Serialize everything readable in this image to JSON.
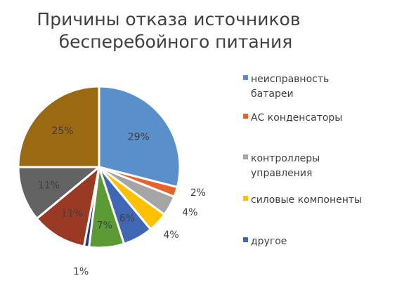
{
  "chart_data": {
    "type": "pie",
    "title": [
      "Причины отказа источников",
      "бесперебойного питания"
    ],
    "slices": [
      {
        "label": "неисправность батареи",
        "value": 29,
        "display": "29%",
        "color": "#5B8FC9",
        "legend": true
      },
      {
        "label": "АС конденсаторы",
        "value": 2,
        "display": "2%",
        "color": "#E8632B",
        "legend": true
      },
      {
        "label": "контроллеры управления",
        "value": 4,
        "display": "4%",
        "color": "#A5A5A5",
        "legend": true
      },
      {
        "label": "силовые компоненты",
        "value": 4,
        "display": "4%",
        "color": "#FFC000",
        "legend": true
      },
      {
        "label": "другое",
        "value": 6,
        "display": "6%",
        "color": "#3F67B5",
        "legend": true
      },
      {
        "label": "",
        "value": 7,
        "display": "7%",
        "color": "#5C9A35",
        "legend": false
      },
      {
        "label": "",
        "value": 1,
        "display": "1%",
        "color": "#1F3B73",
        "legend": false
      },
      {
        "label": "",
        "value": 11,
        "display": "11%",
        "color": "#9B3A24",
        "legend": false
      },
      {
        "label": "",
        "value": 11,
        "display": "11%",
        "color": "#636363",
        "legend": false
      },
      {
        "label": "",
        "value": 25,
        "display": "25%",
        "color": "#9A6912",
        "legend": false
      }
    ],
    "legend": {
      "placement": "right",
      "entries": [
        {
          "lines": [
            "неисправность",
            "батареи"
          ],
          "color": "#5B8FC9"
        },
        {
          "lines": [
            "АС конденсаторы"
          ],
          "color": "#E8632B"
        },
        {
          "lines": [
            "контроллеры",
            "управления"
          ],
          "color": "#A5A5A5"
        },
        {
          "lines": [
            "силовые компоненты"
          ],
          "color": "#FFC000"
        },
        {
          "lines": [
            "другое"
          ],
          "color": "#3F67B5"
        }
      ]
    }
  }
}
